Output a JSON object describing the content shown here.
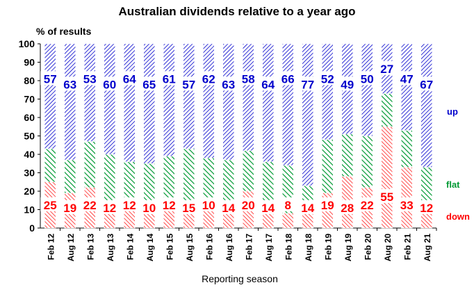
{
  "chart_data": {
    "type": "bar",
    "stacked": true,
    "title": "Australian dividends relative to a year ago",
    "ylabel": "% of results",
    "xlabel": "Reporting season",
    "ylim": [
      0,
      100
    ],
    "yticks": [
      0,
      10,
      20,
      30,
      40,
      50,
      60,
      70,
      80,
      90,
      100
    ],
    "categories": [
      "Feb 12",
      "Aug 12",
      "Feb 13",
      "Aug 13",
      "Feb 14",
      "Aug 14",
      "Feb 15",
      "Aug 15",
      "Feb 16",
      "Aug 16",
      "Feb 17",
      "Aug 17",
      "Feb 18",
      "Aug 18",
      "Feb 19",
      "Aug 19",
      "Feb 20",
      "Aug 20",
      "Feb 21",
      "Aug 21"
    ],
    "series": [
      {
        "name": "down",
        "color": "#ff0000",
        "values": [
          25,
          19,
          22,
          12,
          12,
          10,
          12,
          15,
          10,
          14,
          20,
          14,
          8,
          14,
          19,
          28,
          22,
          55,
          33,
          12
        ]
      },
      {
        "name": "flat",
        "color": "#009933",
        "values": [
          18,
          18,
          25,
          28,
          24,
          25,
          27,
          28,
          28,
          23,
          22,
          22,
          26,
          9,
          29,
          23,
          28,
          18,
          20,
          21
        ]
      },
      {
        "name": "up",
        "color": "#0000cc",
        "values": [
          57,
          63,
          53,
          60,
          64,
          65,
          61,
          57,
          62,
          63,
          58,
          64,
          66,
          77,
          52,
          49,
          50,
          27,
          47,
          67
        ]
      }
    ],
    "legend": {
      "up": "up",
      "flat": "flat",
      "down": "down"
    }
  }
}
